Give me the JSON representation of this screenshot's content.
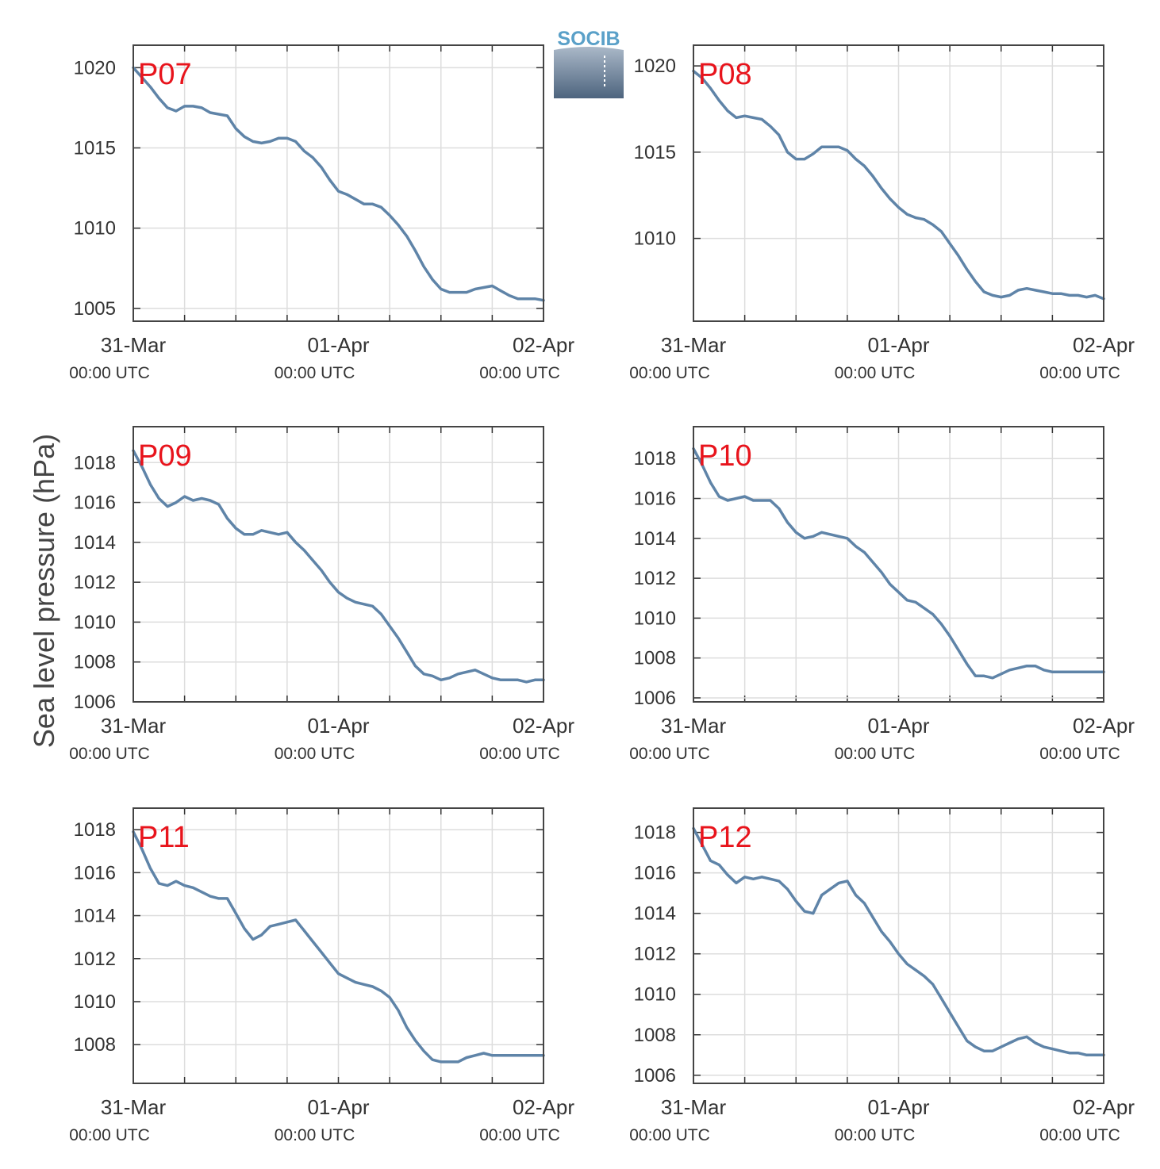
{
  "ylabel": "Sea level pressure (hPa)",
  "logo": {
    "text": "SOCIB",
    "color": "#5aa0c8"
  },
  "series_color": "#5f84a8",
  "panel_label_color": "#e8141c",
  "chart_data": [
    {
      "type": "line",
      "panel": "P07",
      "xlim": [
        0,
        48
      ],
      "ylim": [
        1004.2,
        1021.4
      ],
      "yticks": [
        1005,
        1010,
        1015,
        1020
      ],
      "xticks": [
        0,
        24,
        48
      ],
      "xticklabels": [
        "31-Mar",
        "01-Apr",
        "02-Apr"
      ],
      "xticksublabels": [
        "00:00 UTC",
        "00:00 UTC",
        "00:00 UTC"
      ],
      "x": [
        0,
        1,
        2,
        3,
        4,
        5,
        6,
        7,
        8,
        9,
        10,
        11,
        12,
        13,
        14,
        15,
        16,
        17,
        18,
        19,
        20,
        21,
        22,
        23,
        24,
        25,
        26,
        27,
        28,
        29,
        30,
        31,
        32,
        33,
        34,
        35,
        36,
        37,
        38,
        39,
        40,
        41,
        42,
        43,
        44,
        45,
        46,
        47,
        48
      ],
      "y": [
        1020.0,
        1019.4,
        1018.8,
        1018.1,
        1017.5,
        1017.3,
        1017.6,
        1017.6,
        1017.5,
        1017.2,
        1017.1,
        1017.0,
        1016.2,
        1015.7,
        1015.4,
        1015.3,
        1015.4,
        1015.6,
        1015.6,
        1015.4,
        1014.8,
        1014.4,
        1013.8,
        1013.0,
        1012.3,
        1012.1,
        1011.8,
        1011.5,
        1011.5,
        1011.3,
        1010.8,
        1010.2,
        1009.5,
        1008.6,
        1007.6,
        1006.8,
        1006.2,
        1006.0,
        1006.0,
        1006.0,
        1006.2,
        1006.3,
        1006.4,
        1006.1,
        1005.8,
        1005.6,
        1005.6,
        1005.6,
        1005.5
      ]
    },
    {
      "type": "line",
      "panel": "P08",
      "xlim": [
        0,
        48
      ],
      "ylim": [
        1005.2,
        1021.2
      ],
      "yticks": [
        1010,
        1015,
        1020
      ],
      "xticks": [
        0,
        24,
        48
      ],
      "xticklabels": [
        "31-Mar",
        "01-Apr",
        "02-Apr"
      ],
      "xticksublabels": [
        "00:00 UTC",
        "00:00 UTC",
        "00:00 UTC"
      ],
      "x": [
        0,
        1,
        2,
        3,
        4,
        5,
        6,
        7,
        8,
        9,
        10,
        11,
        12,
        13,
        14,
        15,
        16,
        17,
        18,
        19,
        20,
        21,
        22,
        23,
        24,
        25,
        26,
        27,
        28,
        29,
        30,
        31,
        32,
        33,
        34,
        35,
        36,
        37,
        38,
        39,
        40,
        41,
        42,
        43,
        44,
        45,
        46,
        47,
        48
      ],
      "y": [
        1019.7,
        1019.3,
        1018.7,
        1018.0,
        1017.4,
        1017.0,
        1017.1,
        1017.0,
        1016.9,
        1016.5,
        1016.0,
        1015.0,
        1014.6,
        1014.6,
        1014.9,
        1015.3,
        1015.3,
        1015.3,
        1015.1,
        1014.6,
        1014.2,
        1013.6,
        1012.9,
        1012.3,
        1011.8,
        1011.4,
        1011.2,
        1011.1,
        1010.8,
        1010.4,
        1009.7,
        1009.0,
        1008.2,
        1007.5,
        1006.9,
        1006.7,
        1006.6,
        1006.7,
        1007.0,
        1007.1,
        1007.0,
        1006.9,
        1006.8,
        1006.8,
        1006.7,
        1006.7,
        1006.6,
        1006.7,
        1006.5
      ]
    },
    {
      "type": "line",
      "panel": "P09",
      "xlim": [
        0,
        48
      ],
      "ylim": [
        1006,
        1019.8
      ],
      "yticks": [
        1006,
        1008,
        1010,
        1012,
        1014,
        1016,
        1018
      ],
      "xticks": [
        0,
        24,
        48
      ],
      "xticklabels": [
        "31-Mar",
        "01-Apr",
        "02-Apr"
      ],
      "xticksublabels": [
        "00:00 UTC",
        "00:00 UTC",
        "00:00 UTC"
      ],
      "x": [
        0,
        1,
        2,
        3,
        4,
        5,
        6,
        7,
        8,
        9,
        10,
        11,
        12,
        13,
        14,
        15,
        16,
        17,
        18,
        19,
        20,
        21,
        22,
        23,
        24,
        25,
        26,
        27,
        28,
        29,
        30,
        31,
        32,
        33,
        34,
        35,
        36,
        37,
        38,
        39,
        40,
        41,
        42,
        43,
        44,
        45,
        46,
        47,
        48
      ],
      "y": [
        1018.6,
        1017.8,
        1016.9,
        1016.2,
        1015.8,
        1016.0,
        1016.3,
        1016.1,
        1016.2,
        1016.1,
        1015.9,
        1015.2,
        1014.7,
        1014.4,
        1014.4,
        1014.6,
        1014.5,
        1014.4,
        1014.5,
        1014.0,
        1013.6,
        1013.1,
        1012.6,
        1012.0,
        1011.5,
        1011.2,
        1011.0,
        1010.9,
        1010.8,
        1010.4,
        1009.8,
        1009.2,
        1008.5,
        1007.8,
        1007.4,
        1007.3,
        1007.1,
        1007.2,
        1007.4,
        1007.5,
        1007.6,
        1007.4,
        1007.2,
        1007.1,
        1007.1,
        1007.1,
        1007.0,
        1007.1,
        1007.1
      ]
    },
    {
      "type": "line",
      "panel": "P10",
      "xlim": [
        0,
        48
      ],
      "ylim": [
        1005.8,
        1019.6
      ],
      "yticks": [
        1006,
        1008,
        1010,
        1012,
        1014,
        1016,
        1018
      ],
      "xticks": [
        0,
        24,
        48
      ],
      "xticklabels": [
        "31-Mar",
        "01-Apr",
        "02-Apr"
      ],
      "xticksublabels": [
        "00:00 UTC",
        "00:00 UTC",
        "00:00 UTC"
      ],
      "x": [
        0,
        1,
        2,
        3,
        4,
        5,
        6,
        7,
        8,
        9,
        10,
        11,
        12,
        13,
        14,
        15,
        16,
        17,
        18,
        19,
        20,
        21,
        22,
        23,
        24,
        25,
        26,
        27,
        28,
        29,
        30,
        31,
        32,
        33,
        34,
        35,
        36,
        37,
        38,
        39,
        40,
        41,
        42,
        43,
        44,
        45,
        46,
        47,
        48
      ],
      "y": [
        1018.5,
        1017.7,
        1016.8,
        1016.1,
        1015.9,
        1016.0,
        1016.1,
        1015.9,
        1015.9,
        1015.9,
        1015.5,
        1014.8,
        1014.3,
        1014.0,
        1014.1,
        1014.3,
        1014.2,
        1014.1,
        1014.0,
        1013.6,
        1013.3,
        1012.8,
        1012.3,
        1011.7,
        1011.3,
        1010.9,
        1010.8,
        1010.5,
        1010.2,
        1009.7,
        1009.1,
        1008.4,
        1007.7,
        1007.1,
        1007.1,
        1007.0,
        1007.2,
        1007.4,
        1007.5,
        1007.6,
        1007.6,
        1007.4,
        1007.3,
        1007.3,
        1007.3,
        1007.3,
        1007.3,
        1007.3,
        1007.3
      ]
    },
    {
      "type": "line",
      "panel": "P11",
      "xlim": [
        0,
        48
      ],
      "ylim": [
        1006.2,
        1019.0
      ],
      "yticks": [
        1008,
        1010,
        1012,
        1014,
        1016,
        1018
      ],
      "xticks": [
        0,
        24,
        48
      ],
      "xticklabels": [
        "31-Mar",
        "01-Apr",
        "02-Apr"
      ],
      "xticksublabels": [
        "00:00 UTC",
        "00:00 UTC",
        "00:00 UTC"
      ],
      "x": [
        0,
        1,
        2,
        3,
        4,
        5,
        6,
        7,
        8,
        9,
        10,
        11,
        12,
        13,
        14,
        15,
        16,
        17,
        18,
        19,
        20,
        21,
        22,
        23,
        24,
        25,
        26,
        27,
        28,
        29,
        30,
        31,
        32,
        33,
        34,
        35,
        36,
        37,
        38,
        39,
        40,
        41,
        42,
        43,
        44,
        45,
        46,
        47,
        48
      ],
      "y": [
        1017.9,
        1017.1,
        1016.2,
        1015.5,
        1015.4,
        1015.6,
        1015.4,
        1015.3,
        1015.1,
        1014.9,
        1014.8,
        1014.8,
        1014.1,
        1013.4,
        1012.9,
        1013.1,
        1013.5,
        1013.6,
        1013.7,
        1013.8,
        1013.3,
        1012.8,
        1012.3,
        1011.8,
        1011.3,
        1011.1,
        1010.9,
        1010.8,
        1010.7,
        1010.5,
        1010.2,
        1009.6,
        1008.8,
        1008.2,
        1007.7,
        1007.3,
        1007.2,
        1007.2,
        1007.2,
        1007.4,
        1007.5,
        1007.6,
        1007.5,
        1007.5,
        1007.5,
        1007.5,
        1007.5,
        1007.5,
        1007.5
      ]
    },
    {
      "type": "line",
      "panel": "P12",
      "xlim": [
        0,
        48
      ],
      "ylim": [
        1005.6,
        1019.2
      ],
      "yticks": [
        1006,
        1008,
        1010,
        1012,
        1014,
        1016,
        1018
      ],
      "xticks": [
        0,
        24,
        48
      ],
      "xticklabels": [
        "31-Mar",
        "01-Apr",
        "02-Apr"
      ],
      "xticksublabels": [
        "00:00 UTC",
        "00:00 UTC",
        "00:00 UTC"
      ],
      "x": [
        0,
        1,
        2,
        3,
        4,
        5,
        6,
        7,
        8,
        9,
        10,
        11,
        12,
        13,
        14,
        15,
        16,
        17,
        18,
        19,
        20,
        21,
        22,
        23,
        24,
        25,
        26,
        27,
        28,
        29,
        30,
        31,
        32,
        33,
        34,
        35,
        36,
        37,
        38,
        39,
        40,
        41,
        42,
        43,
        44,
        45,
        46,
        47,
        48
      ],
      "y": [
        1018.2,
        1017.4,
        1016.6,
        1016.4,
        1015.9,
        1015.5,
        1015.8,
        1015.7,
        1015.8,
        1015.7,
        1015.6,
        1015.2,
        1014.6,
        1014.1,
        1014.0,
        1014.9,
        1015.2,
        1015.5,
        1015.6,
        1014.9,
        1014.5,
        1013.8,
        1013.1,
        1012.6,
        1012.0,
        1011.5,
        1011.2,
        1010.9,
        1010.5,
        1009.8,
        1009.1,
        1008.4,
        1007.7,
        1007.4,
        1007.2,
        1007.2,
        1007.4,
        1007.6,
        1007.8,
        1007.9,
        1007.6,
        1007.4,
        1007.3,
        1007.2,
        1007.1,
        1007.1,
        1007.0,
        1007.0,
        1007.0
      ]
    }
  ]
}
